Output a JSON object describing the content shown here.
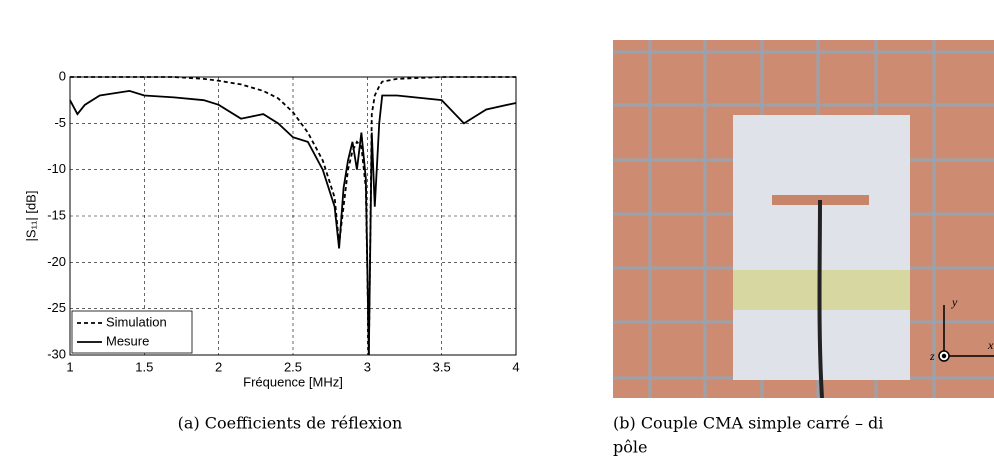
{
  "chart_data": {
    "type": "line",
    "xlabel": "Fréquence [MHz]",
    "ylabel": "|S₁₁| [dB]",
    "x": [
      1,
      1.05,
      1.1,
      1.2,
      1.4,
      1.5,
      1.7,
      1.9,
      2.0,
      2.15,
      2.3,
      2.4,
      2.5,
      2.6,
      2.7,
      2.78,
      2.81,
      2.84,
      2.87,
      2.9,
      2.93,
      2.96,
      2.99,
      3.01,
      3.03,
      3.05,
      3.08,
      3.1,
      3.2,
      3.5,
      3.65,
      3.8,
      4.0
    ],
    "series": [
      {
        "name": "Simulation",
        "color": "#000000",
        "dash": true,
        "values": [
          0,
          0,
          0,
          0,
          0,
          0,
          0,
          -0.2,
          -0.4,
          -0.8,
          -1.5,
          -2.3,
          -3.8,
          -6,
          -9,
          -13,
          -18,
          -14,
          -10,
          -8,
          -7,
          -7.5,
          -12,
          -30,
          -4,
          -2,
          -1,
          -0.5,
          -0.2,
          0,
          0,
          0,
          0
        ]
      },
      {
        "name": "Mesure",
        "color": "#000000",
        "dash": false,
        "values": [
          -2.5,
          -4,
          -3,
          -2,
          -1.5,
          -2,
          -2.2,
          -2.5,
          -3,
          -4.5,
          -4,
          -5,
          -6.5,
          -7,
          -10,
          -14,
          -18.5,
          -12,
          -9,
          -7,
          -10,
          -6,
          -11,
          -30,
          -6,
          -14,
          -5,
          -2,
          -2,
          -2.5,
          -5,
          -3.5,
          -2.8
        ]
      }
    ],
    "xlim": [
      1,
      4
    ],
    "ylim": [
      -30,
      0
    ],
    "xticks": [
      1,
      1.5,
      2,
      2.5,
      3,
      3.5,
      4
    ],
    "yticks": [
      -30,
      -25,
      -20,
      -15,
      -10,
      -5,
      0
    ],
    "grid": true,
    "legend": "lower-left"
  },
  "captions": {
    "a": "(a) Coefficients de réflexion",
    "b": [
      "(b) Couple CMA simple carré – di",
      "pôle"
    ]
  },
  "photo": {
    "axis_labels": [
      "y",
      "z",
      "x"
    ]
  }
}
